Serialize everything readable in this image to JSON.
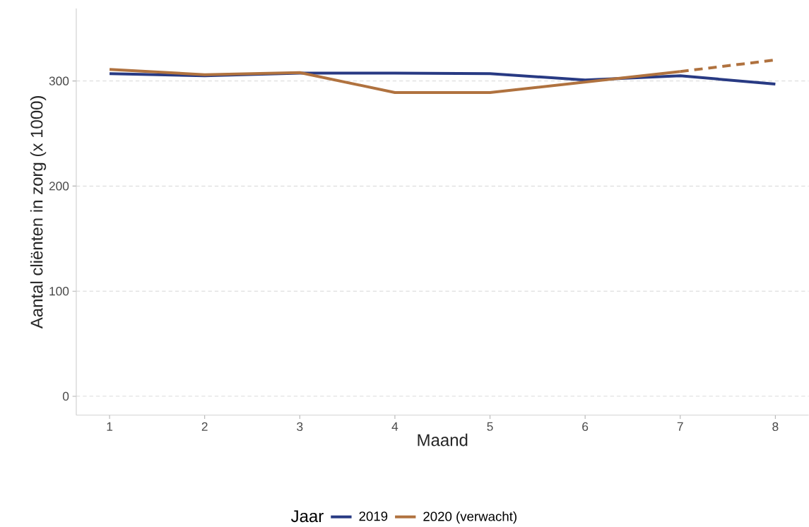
{
  "chart_data": {
    "type": "line",
    "xlabel": "Maand",
    "ylabel": "Aantal cliënten in zorg (x 1000)",
    "legend_title": "Jaar",
    "x": [
      1,
      2,
      3,
      4,
      5,
      6,
      7,
      8
    ],
    "series": [
      {
        "name": "2019",
        "color": "#283a83",
        "line_style": "solid",
        "values": [
          307,
          305,
          307.5,
          307.5,
          307,
          301,
          305,
          297
        ]
      },
      {
        "name": "2020 (verwacht)",
        "color": "#b0723f",
        "line_style": "solid",
        "values": [
          311,
          306,
          308,
          289,
          289,
          299,
          309,
          null
        ]
      },
      {
        "color": "#b0723f",
        "line_style": "dashed",
        "values": [
          null,
          null,
          null,
          null,
          null,
          null,
          309,
          320
        ]
      }
    ],
    "xlim": [
      0.65,
      8.35
    ],
    "ylim": [
      -18,
      369
    ],
    "xticks": [
      1,
      2,
      3,
      4,
      5,
      6,
      7,
      8
    ],
    "yticks": [
      0,
      100,
      200,
      300
    ],
    "grid": "y",
    "legend": "bottom"
  }
}
